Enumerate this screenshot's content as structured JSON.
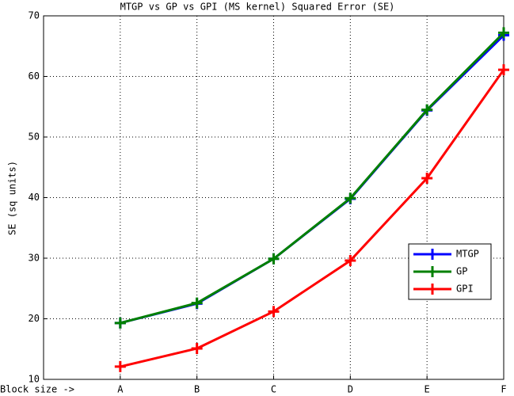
{
  "chart_data": {
    "type": "line",
    "title": "MTGP vs GP vs GPI (MS kernel) Squared Error (SE)",
    "y_label": "SE (sq units)",
    "categories": [
      "Block size ->",
      "A",
      "B",
      "C",
      "D",
      "E",
      "F"
    ],
    "series": [
      {
        "name": "MTGP",
        "color": "#0000ff",
        "values": [
          null,
          19.3,
          22.5,
          29.9,
          39.8,
          54.4,
          66.8
        ]
      },
      {
        "name": "GP",
        "color": "#008000",
        "values": [
          null,
          19.3,
          22.6,
          29.9,
          39.9,
          54.5,
          67.2
        ]
      },
      {
        "name": "GPI",
        "color": "#ff0000",
        "values": [
          null,
          12.1,
          15.1,
          21.2,
          29.6,
          43.2,
          61.1
        ]
      }
    ],
    "ylim": [
      10,
      70
    ],
    "yticks": [
      10,
      20,
      30,
      40,
      50,
      60,
      70
    ],
    "grid": true,
    "legend": "lower right"
  }
}
